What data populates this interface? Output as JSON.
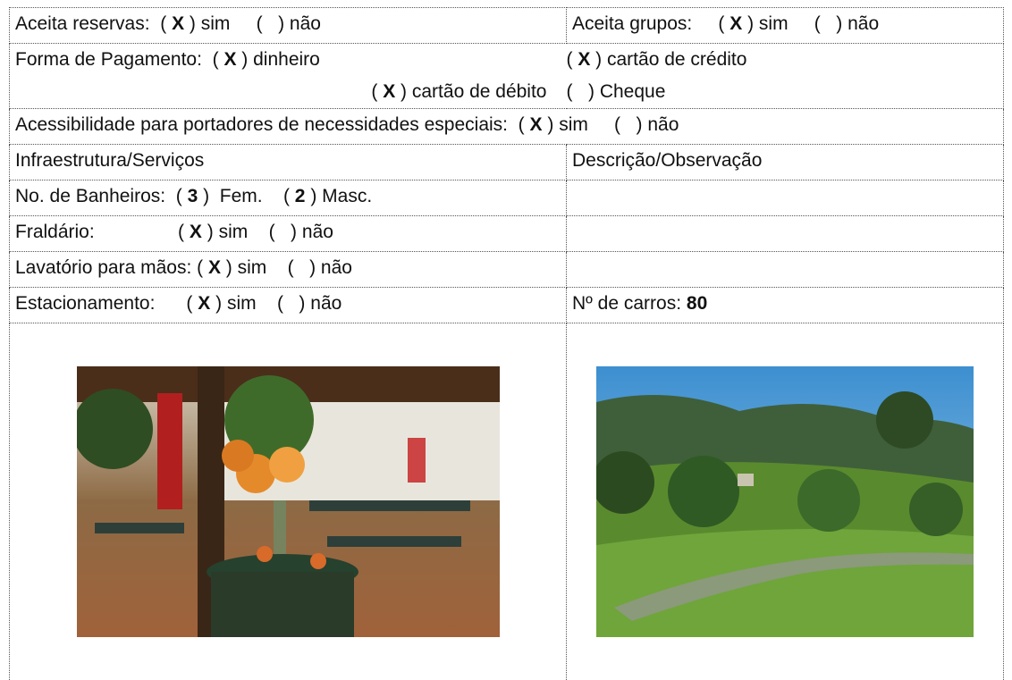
{
  "rows": [
    {
      "cells": [
        {
          "lines": [
            [
              {
                "text": "Aceita reservas:  ( "
              },
              {
                "text": "X",
                "bold": true
              },
              {
                "text": " ) sim     (   ) não"
              }
            ]
          ]
        },
        {
          "lines": [
            [
              {
                "text": "Aceita grupos:     ( "
              },
              {
                "text": "X",
                "bold": true
              },
              {
                "text": " ) sim     (   ) não"
              }
            ]
          ]
        }
      ]
    },
    {
      "cells": [
        {
          "lines": [
            [
              {
                "text": "Forma de Pagamento:  ( "
              },
              {
                "text": "X",
                "bold": true
              },
              {
                "text": " ) dinheiro"
              }
            ],
            [
              {
                "text": "( "
              },
              {
                "text": "X",
                "bold": true
              },
              {
                "text": " ) cartão de débito"
              }
            ]
          ]
        },
        {
          "lines": [
            [
              {
                "text": "( "
              },
              {
                "text": "X",
                "bold": true
              },
              {
                "text": " ) cartão de crédito"
              }
            ],
            [
              {
                "text": "(   ) Cheque"
              }
            ]
          ]
        }
      ]
    },
    {
      "cells": [
        {
          "lines": [
            [
              {
                "text": "Acessibilidade para portadores de necessidades especiais:  ( "
              },
              {
                "text": "X",
                "bold": true
              },
              {
                "text": " ) sim     (   ) não"
              }
            ]
          ]
        }
      ]
    },
    {
      "cells": [
        {
          "lines": [
            [
              {
                "text": "Infraestrutura/Serviços"
              }
            ]
          ]
        },
        {
          "lines": [
            [
              {
                "text": "Descrição/Observação"
              }
            ]
          ]
        }
      ]
    },
    {
      "cells": [
        {
          "lines": [
            [
              {
                "text": "No. de Banheiros:  ( "
              },
              {
                "text": "3",
                "bold": true
              },
              {
                "text": " )  Fem.    ( "
              },
              {
                "text": "2",
                "bold": true
              },
              {
                "text": " ) Masc."
              }
            ]
          ]
        },
        {
          "lines": []
        }
      ]
    },
    {
      "cells": [
        {
          "lines": [
            [
              {
                "text": "Fraldário:                ( "
              },
              {
                "text": "X",
                "bold": true
              },
              {
                "text": " ) sim    (   ) não"
              }
            ]
          ]
        },
        {
          "lines": []
        }
      ]
    },
    {
      "cells": [
        {
          "lines": [
            [
              {
                "text": "Lavatório para mãos: ( "
              },
              {
                "text": "X",
                "bold": true
              },
              {
                "text": " ) sim    (   ) não"
              }
            ]
          ]
        },
        {
          "lines": []
        }
      ]
    },
    {
      "cells": [
        {
          "lines": [
            [
              {
                "text": "Estacionamento:      ( "
              },
              {
                "text": "X",
                "bold": true
              },
              {
                "text": " ) sim    (   ) não"
              }
            ]
          ]
        },
        {
          "lines": [
            [
              {
                "text": "Nº de carros: "
              },
              {
                "text": "80",
                "bold": true
              }
            ]
          ]
        }
      ]
    }
  ]
}
